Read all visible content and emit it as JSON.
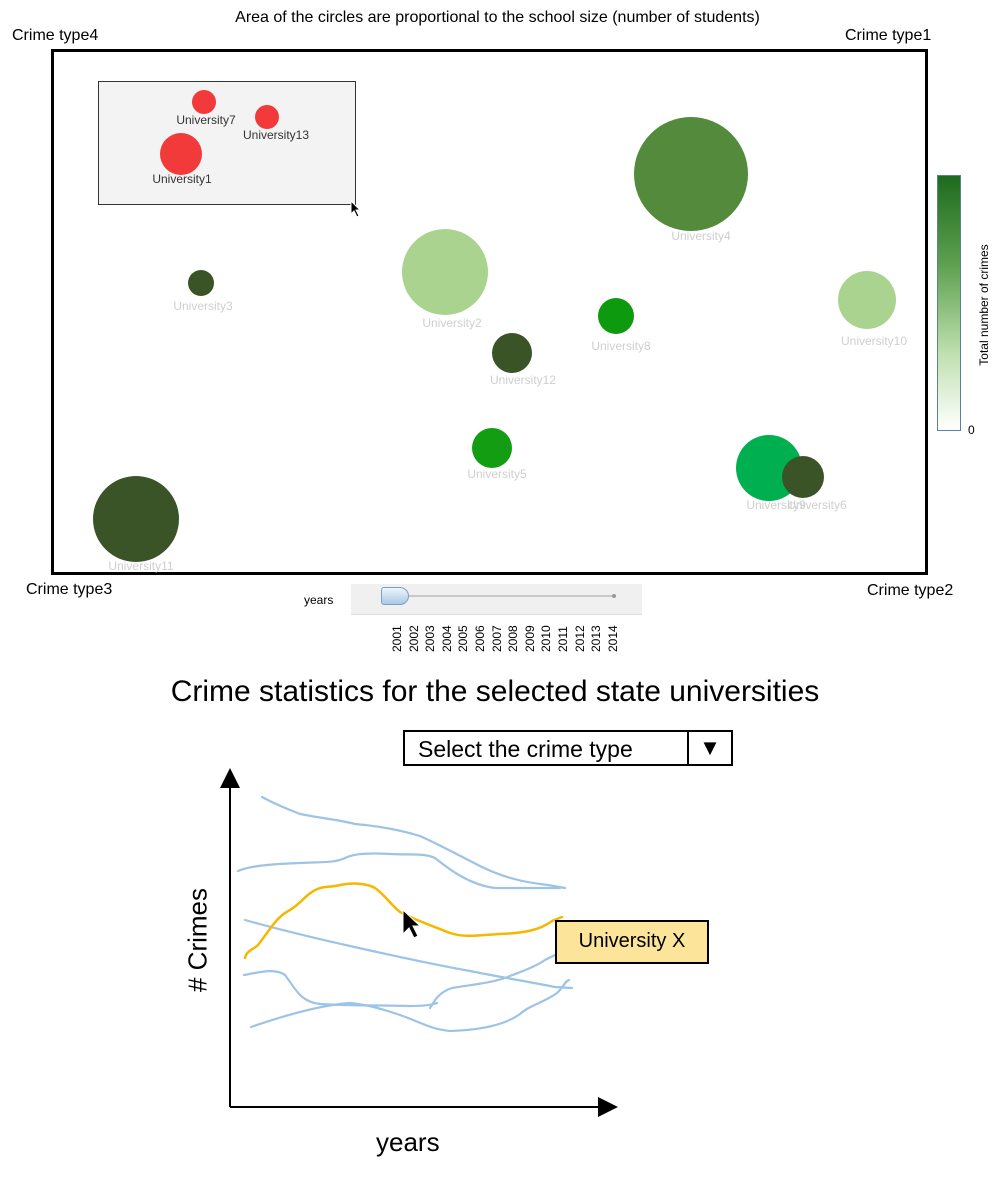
{
  "caption": "Area of the circles are proportional to the school size (number of students)",
  "corners": {
    "top_left": "Crime type4",
    "top_right": "Crime type1",
    "bottom_left": "Crime type3",
    "bottom_right": "Crime type2"
  },
  "universities": [
    {
      "label": "University7",
      "color": "#f23a3a",
      "selected": true
    },
    {
      "label": "University13",
      "color": "#f23a3a",
      "selected": true
    },
    {
      "label": "University1",
      "color": "#f23a3a",
      "selected": true
    },
    {
      "label": "University4",
      "color": "#548a3c",
      "selected": false
    },
    {
      "label": "University3",
      "color": "#3a5428",
      "selected": false
    },
    {
      "label": "University2",
      "color": "#a9d38f",
      "selected": false
    },
    {
      "label": "University8",
      "color": "#0e9a0e",
      "selected": false
    },
    {
      "label": "University10",
      "color": "#a9d38f",
      "selected": false
    },
    {
      "label": "University12",
      "color": "#3a5428",
      "selected": false
    },
    {
      "label": "University5",
      "color": "#129d12",
      "selected": false
    },
    {
      "label": "University9",
      "color": "#00b050",
      "selected": false
    },
    {
      "label": "University6",
      "color": "#3a5428",
      "selected": false
    },
    {
      "label": "University11",
      "color": "#3a5428",
      "selected": false
    }
  ],
  "colorbar": {
    "title": "Total number of crimes",
    "min_label": "0",
    "top_color": "#1e6b1e",
    "bottom_color": "#ffffff"
  },
  "slider": {
    "label": "years",
    "years": [
      "2001",
      "2002",
      "2003",
      "2004",
      "2005",
      "2006",
      "2007",
      "2008",
      "2009",
      "2010",
      "2011",
      "2012",
      "2013",
      "2014"
    ]
  },
  "section_title": "Crime statistics for the selected state universities",
  "dropdown": {
    "text": "Select the crime type",
    "arrow": "▼"
  },
  "line_chart": {
    "ylabel": "# Crimes",
    "xlabel": "years",
    "tooltip": "University X",
    "highlight_color": "#f5b800",
    "line_color": "#9dc3e6"
  }
}
